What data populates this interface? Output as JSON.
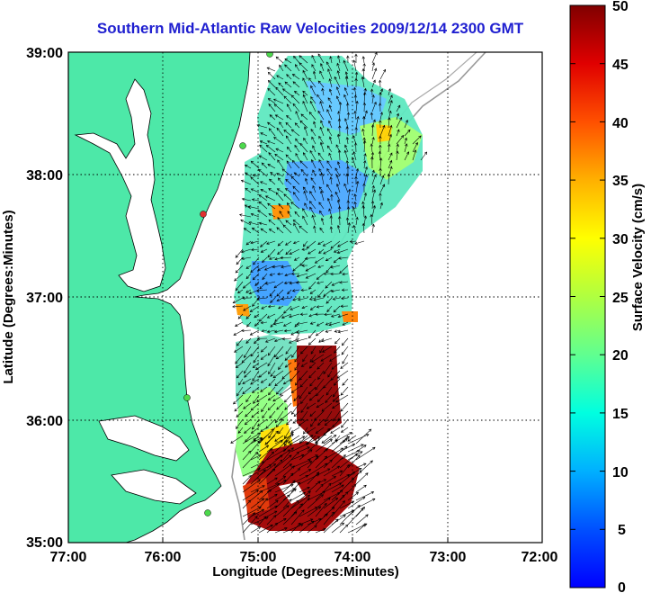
{
  "map": {
    "title": "Southern Mid-Atlantic Raw Velocities 2009/12/14 2300 GMT",
    "xlabel": "Longitude (Degrees:Minutes)",
    "ylabel": "Latitude (Degrees:Minutes)",
    "x_ticks": [
      "77:00",
      "76:00",
      "75:00",
      "74:00",
      "73:00",
      "72:00"
    ],
    "y_ticks": [
      "39:00",
      "38:00",
      "37:00",
      "36:00",
      "35:00"
    ],
    "lon_range": [
      -77,
      -72
    ],
    "lat_range": [
      35,
      39
    ],
    "grid": "dotted",
    "land_color": "#4de8a8",
    "water_color": "#ffffff"
  },
  "colorbar": {
    "label": "Surface Velocity (cm/s)",
    "ticks": [
      "0",
      "5",
      "10",
      "15",
      "20",
      "25",
      "30",
      "35",
      "40",
      "45",
      "50"
    ],
    "range": [
      0,
      50
    ],
    "colormap": "jet"
  }
}
